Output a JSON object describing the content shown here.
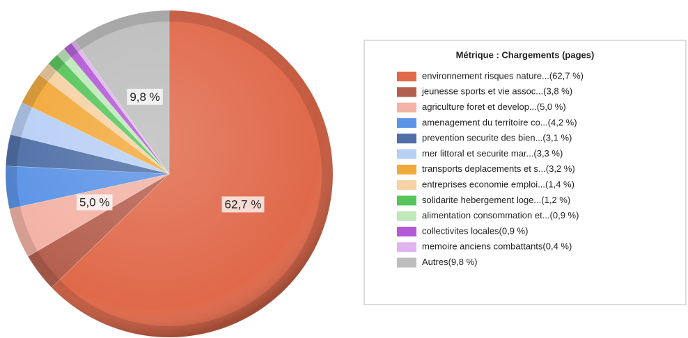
{
  "chart_data": {
    "type": "pie",
    "title": "Métrique :  Chargements (pages)",
    "categories": [
      "environnement  risques nature...(62,7 %)",
      "jeunesse  sports et vie assoc...(3,8 %)",
      "agriculture  foret et develop...(5,0 %)",
      "amenagement du territoire  co...(4,2 %)",
      "prevention  securite des bien...(3,1 %)",
      "mer  littoral et securite mar...(3,3 %)",
      "transports  deplacements et s...(3,2 %)",
      "entreprises  economie  emploi...(1,4 %)",
      "solidarite  hebergement  loge...(1,2 %)",
      "alimentation  consommation et...(0,9 %)",
      "collectivites locales(0,9 %)",
      "memoire  anciens combattants(0,4 %)",
      "Autres(9,8 %)"
    ],
    "values": [
      62.7,
      3.8,
      5.0,
      4.2,
      3.1,
      3.3,
      3.2,
      1.4,
      1.2,
      0.9,
      0.9,
      0.4,
      9.8
    ],
    "value_labels": [
      "62,7 %",
      null,
      "5,0 %",
      null,
      null,
      null,
      null,
      null,
      null,
      null,
      null,
      null,
      "9,8 %"
    ],
    "colors": [
      "#e0694a",
      "#b5604f",
      "#f3b3a6",
      "#5b93e6",
      "#4f6fa6",
      "#b8cff5",
      "#f2a93b",
      "#f6d2a4",
      "#57c45a",
      "#bfe8bb",
      "#b35ad6",
      "#e0b4ee",
      "#bdbdbd"
    ],
    "legend": "right"
  }
}
